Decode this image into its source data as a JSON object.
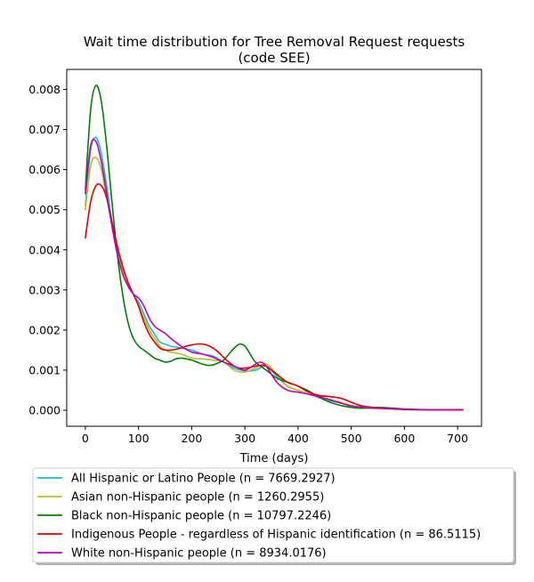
{
  "chart_data": {
    "type": "line",
    "title_line1": "Wait time distribution  for Tree Removal Request  requests",
    "title_line2": "(code SEE)",
    "xlabel": "Time (days)",
    "ylabel": "",
    "xlim": [
      -35,
      745
    ],
    "ylim": [
      -0.0004,
      0.0085
    ],
    "x_ticks": [
      0,
      100,
      200,
      300,
      400,
      500,
      600,
      700
    ],
    "x_tick_labels": [
      "0",
      "100",
      "200",
      "300",
      "400",
      "500",
      "600",
      "700"
    ],
    "y_ticks": [
      0,
      0.001,
      0.002,
      0.003,
      0.004,
      0.005,
      0.006,
      0.007,
      0.008
    ],
    "y_tick_labels": [
      "0.000",
      "0.001",
      "0.002",
      "0.003",
      "0.004",
      "0.005",
      "0.006",
      "0.007",
      "0.008"
    ],
    "grid": false,
    "legend_position": "below plot",
    "series": [
      {
        "name": "All Hispanic or Latino People (n = 7669.2927)",
        "color": "#17becf",
        "points": [
          [
            0,
            0.0051
          ],
          [
            10,
            0.0065
          ],
          [
            20,
            0.0068
          ],
          [
            30,
            0.0064
          ],
          [
            40,
            0.0056
          ],
          [
            50,
            0.0047
          ],
          [
            60,
            0.004
          ],
          [
            70,
            0.0035
          ],
          [
            80,
            0.0031
          ],
          [
            90,
            0.0029
          ],
          [
            100,
            0.0027
          ],
          [
            110,
            0.0024
          ],
          [
            120,
            0.0021
          ],
          [
            130,
            0.0019
          ],
          [
            140,
            0.0017
          ],
          [
            150,
            0.00165
          ],
          [
            160,
            0.0016
          ],
          [
            180,
            0.00155
          ],
          [
            200,
            0.0015
          ],
          [
            220,
            0.0014
          ],
          [
            240,
            0.00135
          ],
          [
            260,
            0.0012
          ],
          [
            280,
            0.00105
          ],
          [
            300,
            0.00098
          ],
          [
            320,
            0.001
          ],
          [
            340,
            0.0011
          ],
          [
            360,
            0.00085
          ],
          [
            380,
            0.0006
          ],
          [
            400,
            0.0005
          ],
          [
            420,
            0.0004
          ],
          [
            450,
            0.00027
          ],
          [
            480,
            0.00018
          ],
          [
            500,
            0.0001
          ],
          [
            520,
            6e-05
          ],
          [
            550,
            4e-05
          ],
          [
            600,
            2e-05
          ],
          [
            650,
            1e-05
          ],
          [
            710,
            1e-05
          ]
        ]
      },
      {
        "name": "Asian non-Hispanic people (n = 1260.2955)",
        "color": "#bcbd22",
        "points": [
          [
            0,
            0.005
          ],
          [
            10,
            0.0061
          ],
          [
            20,
            0.0063
          ],
          [
            30,
            0.006
          ],
          [
            40,
            0.0053
          ],
          [
            50,
            0.0046
          ],
          [
            60,
            0.0039
          ],
          [
            70,
            0.0035
          ],
          [
            80,
            0.0031
          ],
          [
            90,
            0.0029
          ],
          [
            100,
            0.0026
          ],
          [
            110,
            0.0023
          ],
          [
            120,
            0.002
          ],
          [
            130,
            0.0018
          ],
          [
            140,
            0.0016
          ],
          [
            150,
            0.0015
          ],
          [
            160,
            0.00145
          ],
          [
            180,
            0.0014
          ],
          [
            200,
            0.0013
          ],
          [
            220,
            0.00128
          ],
          [
            240,
            0.00125
          ],
          [
            260,
            0.0012
          ],
          [
            280,
            0.001
          ],
          [
            300,
            0.00095
          ],
          [
            320,
            0.00105
          ],
          [
            340,
            0.00115
          ],
          [
            360,
            0.0009
          ],
          [
            380,
            0.0006
          ],
          [
            400,
            0.0005
          ],
          [
            420,
            0.0004
          ],
          [
            450,
            0.0003
          ],
          [
            480,
            0.0002
          ],
          [
            500,
            0.00012
          ],
          [
            520,
            6e-05
          ],
          [
            550,
            4e-05
          ],
          [
            600,
            2e-05
          ],
          [
            650,
            1e-05
          ],
          [
            710,
            1e-05
          ]
        ]
      },
      {
        "name": "Black non-Hispanic people (n = 10797.2246)",
        "color": "#008000",
        "points": [
          [
            0,
            0.0055
          ],
          [
            10,
            0.0075
          ],
          [
            20,
            0.0081
          ],
          [
            30,
            0.0077
          ],
          [
            40,
            0.0066
          ],
          [
            50,
            0.0052
          ],
          [
            60,
            0.0039
          ],
          [
            70,
            0.0029
          ],
          [
            80,
            0.0022
          ],
          [
            90,
            0.0018
          ],
          [
            100,
            0.0016
          ],
          [
            110,
            0.0015
          ],
          [
            120,
            0.0014
          ],
          [
            130,
            0.0013
          ],
          [
            140,
            0.00125
          ],
          [
            150,
            0.0012
          ],
          [
            160,
            0.00122
          ],
          [
            170,
            0.00128
          ],
          [
            180,
            0.0013
          ],
          [
            190,
            0.00128
          ],
          [
            200,
            0.00125
          ],
          [
            210,
            0.0012
          ],
          [
            220,
            0.00115
          ],
          [
            230,
            0.00112
          ],
          [
            240,
            0.00113
          ],
          [
            250,
            0.00118
          ],
          [
            260,
            0.00125
          ],
          [
            270,
            0.0014
          ],
          [
            280,
            0.00155
          ],
          [
            290,
            0.00165
          ],
          [
            300,
            0.0016
          ],
          [
            310,
            0.0014
          ],
          [
            320,
            0.0012
          ],
          [
            340,
            0.001
          ],
          [
            360,
            0.0008
          ],
          [
            380,
            0.0007
          ],
          [
            400,
            0.0006
          ],
          [
            420,
            0.00048
          ],
          [
            440,
            0.00032
          ],
          [
            460,
            0.0002
          ],
          [
            480,
            0.00012
          ],
          [
            500,
            7e-05
          ],
          [
            520,
            5e-05
          ],
          [
            550,
            7e-05
          ],
          [
            580,
            5e-05
          ],
          [
            600,
            3e-05
          ],
          [
            650,
            1e-05
          ],
          [
            710,
            1e-05
          ]
        ]
      },
      {
        "name": "Indigenous People - regardless of Hispanic identification (n = 86.5115)",
        "color": "#e00000",
        "points": [
          [
            0,
            0.0043
          ],
          [
            10,
            0.0052
          ],
          [
            20,
            0.0056
          ],
          [
            30,
            0.0056
          ],
          [
            40,
            0.0053
          ],
          [
            50,
            0.0047
          ],
          [
            60,
            0.0041
          ],
          [
            70,
            0.0036
          ],
          [
            80,
            0.0032
          ],
          [
            90,
            0.0029
          ],
          [
            100,
            0.0026
          ],
          [
            110,
            0.0022
          ],
          [
            120,
            0.0019
          ],
          [
            130,
            0.0017
          ],
          [
            140,
            0.00155
          ],
          [
            150,
            0.0015
          ],
          [
            160,
            0.0015
          ],
          [
            170,
            0.00152
          ],
          [
            180,
            0.00155
          ],
          [
            190,
            0.0016
          ],
          [
            200,
            0.00163
          ],
          [
            210,
            0.00165
          ],
          [
            220,
            0.00165
          ],
          [
            230,
            0.00162
          ],
          [
            240,
            0.00155
          ],
          [
            250,
            0.00145
          ],
          [
            260,
            0.00132
          ],
          [
            270,
            0.0012
          ],
          [
            280,
            0.0011
          ],
          [
            290,
            0.00105
          ],
          [
            300,
            0.00105
          ],
          [
            310,
            0.00107
          ],
          [
            320,
            0.0011
          ],
          [
            330,
            0.00112
          ],
          [
            340,
            0.0011
          ],
          [
            350,
            0.001
          ],
          [
            360,
            0.0009
          ],
          [
            380,
            0.0007
          ],
          [
            400,
            0.0006
          ],
          [
            420,
            0.00045
          ],
          [
            440,
            0.00037
          ],
          [
            460,
            0.00034
          ],
          [
            480,
            0.0003
          ],
          [
            500,
            0.0002
          ],
          [
            520,
            0.00011
          ],
          [
            550,
            6e-05
          ],
          [
            600,
            2e-05
          ],
          [
            650,
            1e-05
          ],
          [
            710,
            1e-05
          ]
        ]
      },
      {
        "name": "White non-Hispanic people (n = 8934.0176)",
        "color": "#c000c0",
        "points": [
          [
            0,
            0.0054
          ],
          [
            10,
            0.0066
          ],
          [
            20,
            0.0067
          ],
          [
            30,
            0.0062
          ],
          [
            40,
            0.0054
          ],
          [
            50,
            0.0046
          ],
          [
            60,
            0.0039
          ],
          [
            70,
            0.0034
          ],
          [
            80,
            0.0031
          ],
          [
            90,
            0.0029
          ],
          [
            100,
            0.0028
          ],
          [
            110,
            0.0026
          ],
          [
            120,
            0.0023
          ],
          [
            130,
            0.0021
          ],
          [
            140,
            0.002
          ],
          [
            150,
            0.00192
          ],
          [
            160,
            0.0018
          ],
          [
            180,
            0.0016
          ],
          [
            200,
            0.00145
          ],
          [
            220,
            0.0014
          ],
          [
            240,
            0.00132
          ],
          [
            260,
            0.0012
          ],
          [
            280,
            0.0011
          ],
          [
            300,
            0.001
          ],
          [
            320,
            0.00115
          ],
          [
            330,
            0.0012
          ],
          [
            340,
            0.0011
          ],
          [
            360,
            0.0007
          ],
          [
            380,
            0.0005
          ],
          [
            400,
            0.00045
          ],
          [
            420,
            0.0004
          ],
          [
            450,
            0.0003
          ],
          [
            480,
            0.00018
          ],
          [
            500,
            0.00011
          ],
          [
            520,
            8e-05
          ],
          [
            550,
            5e-05
          ],
          [
            600,
            3e-05
          ],
          [
            650,
            1e-05
          ],
          [
            710,
            1e-05
          ]
        ]
      }
    ]
  }
}
